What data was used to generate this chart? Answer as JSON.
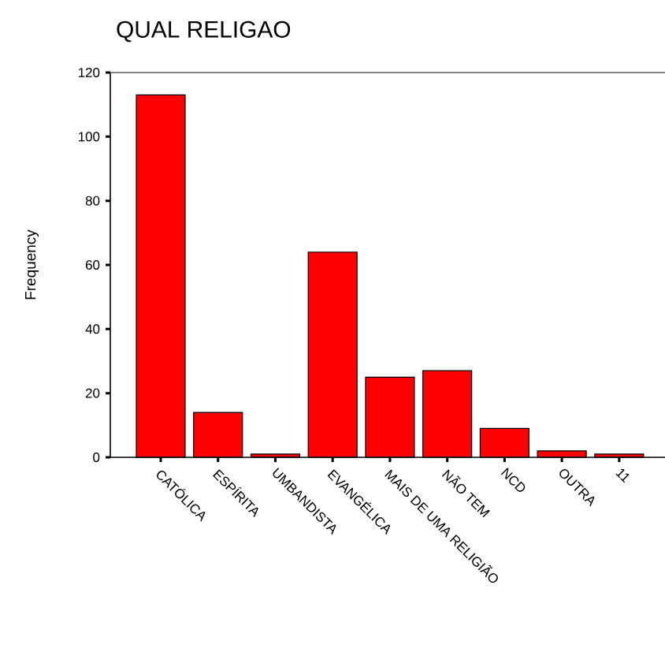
{
  "chart_data": {
    "type": "bar",
    "title": "QUAL RELIGAO",
    "ylabel": "Frequency",
    "categories": [
      "CATÓLICA",
      "ESPÍRITA",
      "UMBANDISTA",
      "EVANGÉLICA",
      "MAIS DE UMA RELIGIÃO",
      "NÃO TEM",
      "NCD",
      "OUTRA",
      "11"
    ],
    "values": [
      113,
      14,
      1,
      64,
      25,
      27,
      9,
      2,
      1
    ],
    "color": "#ff0000",
    "ylim": [
      0,
      120
    ],
    "yticks": [
      0,
      20,
      40,
      60,
      80,
      100,
      120
    ],
    "grid": false
  }
}
